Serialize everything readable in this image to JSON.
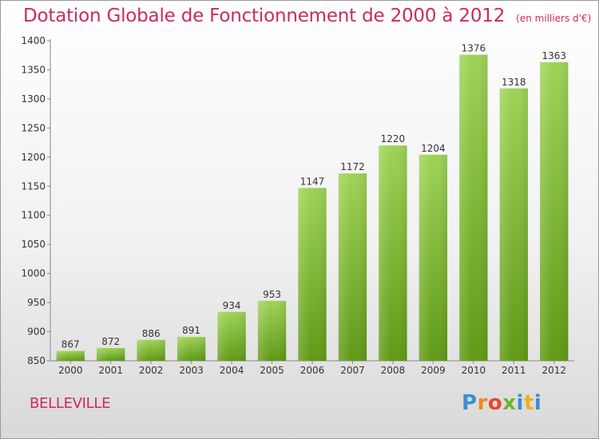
{
  "title": "Dotation Globale de Fonctionnement de 2000 à 2012",
  "subtitle": "(en milliers d'€)",
  "location": "BELLEVILLE",
  "logo": {
    "text": "Proxiti",
    "letters": [
      "P",
      "r",
      "o",
      "x",
      "i",
      "t",
      "i"
    ]
  },
  "colors": {
    "accent": "#cc2a60",
    "bar_top": "#9fd356",
    "bar_bottom": "#5f9a16"
  },
  "chart_data": {
    "type": "bar",
    "title": "Dotation Globale de Fonctionnement de 2000 à 2012",
    "subtitle": "(en milliers d'€)",
    "xlabel": "",
    "ylabel": "",
    "categories": [
      "2000",
      "2001",
      "2002",
      "2003",
      "2004",
      "2005",
      "2006",
      "2007",
      "2008",
      "2009",
      "2010",
      "2011",
      "2012"
    ],
    "values": [
      867,
      872,
      886,
      891,
      934,
      953,
      1147,
      1172,
      1220,
      1204,
      1376,
      1318,
      1363
    ],
    "ylim": [
      850,
      1400
    ],
    "yticks": [
      850,
      900,
      950,
      1000,
      1050,
      1100,
      1150,
      1200,
      1250,
      1300,
      1350,
      1400
    ],
    "grid": false,
    "legend": "none"
  }
}
